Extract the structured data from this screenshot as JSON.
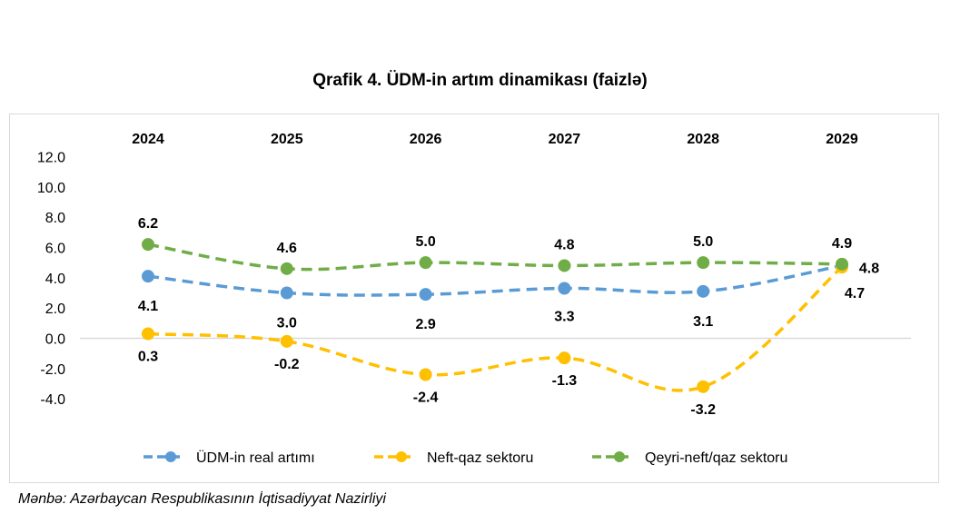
{
  "chart_data": {
    "type": "line",
    "title": "Qrafik 4. ÜDM-in artım dinamikası (faizlə)",
    "categories": [
      "2024",
      "2025",
      "2026",
      "2027",
      "2028",
      "2029"
    ],
    "ylim": [
      -4,
      12
    ],
    "yticks": [
      "12.0",
      "10.0",
      "8.0",
      "6.0",
      "4.0",
      "2.0",
      "0.0",
      "-2.0",
      "-4.0"
    ],
    "ytick_values": [
      12,
      10,
      8,
      6,
      4,
      2,
      0,
      -2,
      -4
    ],
    "grid": false,
    "legend_position": "bottom",
    "series": [
      {
        "name": "ÜDM-in real artımı",
        "color": "#5b9bd5",
        "values": [
          4.1,
          3.0,
          2.9,
          3.3,
          3.1,
          4.8
        ],
        "labels": [
          "4.1",
          "3.0",
          "2.9",
          "3.3",
          "3.1",
          "4.8"
        ]
      },
      {
        "name": "Neft-qaz sektoru",
        "color": "#ffc000",
        "values": [
          0.3,
          -0.2,
          -2.4,
          -1.3,
          -3.2,
          4.7
        ],
        "labels": [
          "0.3",
          "-0.2",
          "-2.4",
          "-1.3",
          "-3.2",
          "4.7"
        ]
      },
      {
        "name": "Qeyri-neft/qaz sektoru",
        "color": "#70ad47",
        "values": [
          6.2,
          4.6,
          5.0,
          4.8,
          5.0,
          4.9
        ],
        "labels": [
          "6.2",
          "4.6",
          "5.0",
          "4.8",
          "5.0",
          "4.9"
        ]
      }
    ]
  },
  "source": "Mənbə: Azərbaycan Respublikasının İqtisadiyyat Nazirliyi"
}
